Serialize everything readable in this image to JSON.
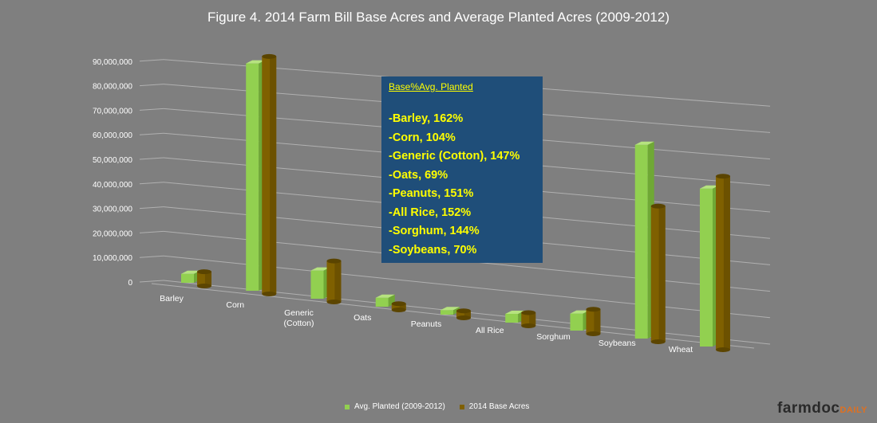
{
  "chart_data": {
    "type": "bar",
    "title": "Figure 4. 2014 Farm Bill Base Acres and Average Planted Acres (2009-2012)",
    "categories": [
      "Barley",
      "Corn",
      "Generic (Cotton)",
      "Oats",
      "Peanuts",
      "All Rice",
      "Sorghum",
      "Soybeans",
      "Wheat"
    ],
    "series": [
      {
        "name": "Avg. Planted (2009-2012)",
        "color": "#92d050",
        "values": [
          3500000,
          89000000,
          11000000,
          3500000,
          1800000,
          3400000,
          6600000,
          75000000,
          61000000
        ]
      },
      {
        "name": "2014 Base Acres",
        "color": "#7f6000",
        "values": [
          5600000,
          93000000,
          16000000,
          2400000,
          2700000,
          5100000,
          9500000,
          52500000,
          67000000
        ]
      }
    ],
    "y_ticks": [
      "0",
      "10,000,000",
      "20,000,000",
      "30,000,000",
      "40,000,000",
      "50,000,000",
      "60,000,000",
      "70,000,000",
      "80,000,000",
      "90,000,000"
    ],
    "ylim": [
      0,
      90000000
    ],
    "legend_position": "bottom",
    "grid": true
  },
  "annotation": {
    "title": "Base%Avg. Planted",
    "items": [
      "-Barley, 162%",
      "-Corn, 104%",
      "-Generic (Cotton), 147%",
      "-Oats, 69%",
      "-Peanuts, 151%",
      "-All Rice, 152%",
      "-Sorghum, 144%",
      "-Soybeans, 70%"
    ]
  },
  "branding": {
    "main": "farmdoc",
    "sub": "DAILY"
  },
  "colors": {
    "background": "#7f7f7f",
    "annotation_bg": "#1f4e79",
    "annotation_text": "#ffff00"
  }
}
